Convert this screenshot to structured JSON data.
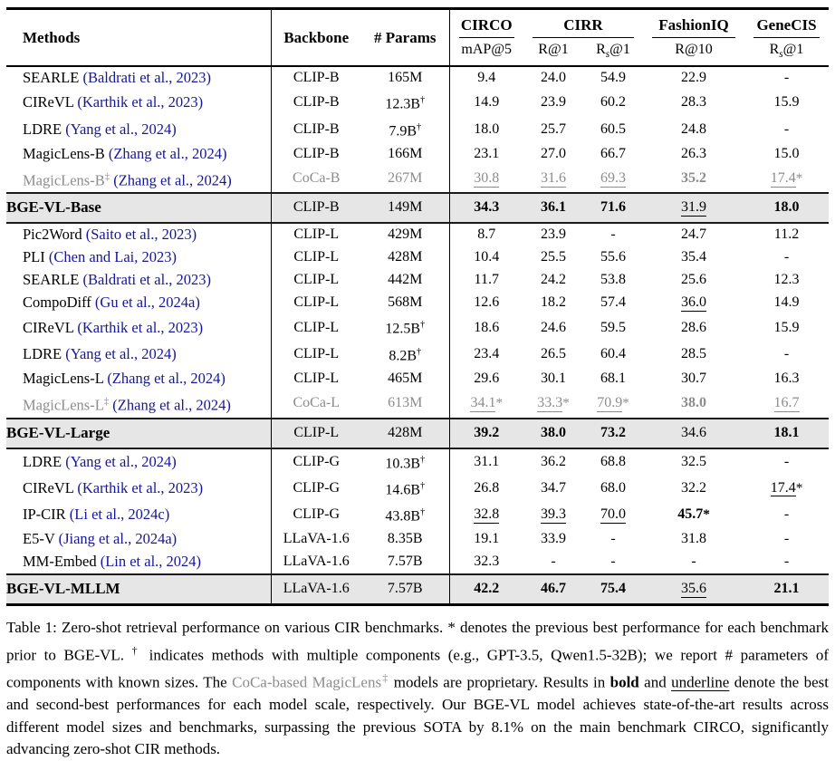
{
  "colors": {
    "cite_blue": "#16169a",
    "gray_text": "#8c8c8c",
    "highlight_bg": "#e6e6e6",
    "rule": "#000000"
  },
  "table": {
    "header": {
      "methods": "Methods",
      "backbone": "Backbone",
      "params": "# Params",
      "groups": [
        {
          "label": "CIRCO"
        },
        {
          "label": "CIRR"
        },
        {
          "label": "FashionIQ"
        },
        {
          "label": "GeneCIS"
        }
      ],
      "sub": [
        {
          "pre": "mAP@5"
        },
        {
          "pre": "R@1"
        },
        {
          "pre": "R",
          "sub": "s",
          "post": "@1"
        },
        {
          "pre": "R@10"
        },
        {
          "pre": "R",
          "sub": "s",
          "post": "@1"
        }
      ]
    },
    "rows": [
      {
        "method": "SEARLE",
        "sup": "",
        "cite": "(Baldrati et al., 2023)",
        "backbone": "CLIP-B",
        "params": "165M",
        "psup": "",
        "gray": false,
        "bge": false,
        "vals": [
          {
            "t": "9.4"
          },
          {
            "t": "24.0"
          },
          {
            "t": "54.9"
          },
          {
            "t": "22.9"
          },
          {
            "t": "-"
          }
        ]
      },
      {
        "method": "CIReVL",
        "sup": "",
        "cite": "(Karthik et al., 2023)",
        "backbone": "CLIP-B",
        "params": "12.3B",
        "psup": "†",
        "gray": false,
        "bge": false,
        "vals": [
          {
            "t": "14.9"
          },
          {
            "t": "23.9"
          },
          {
            "t": "60.2"
          },
          {
            "t": "28.3"
          },
          {
            "t": "15.9"
          }
        ]
      },
      {
        "method": "LDRE",
        "sup": "",
        "cite": "(Yang et al., 2024)",
        "backbone": "CLIP-B",
        "params": "7.9B",
        "psup": "†",
        "gray": false,
        "bge": false,
        "vals": [
          {
            "t": "18.0"
          },
          {
            "t": "25.7"
          },
          {
            "t": "60.5"
          },
          {
            "t": "24.8"
          },
          {
            "t": "-"
          }
        ]
      },
      {
        "method": "MagicLens-B",
        "sup": "",
        "cite": "(Zhang et al., 2024)",
        "backbone": "CLIP-B",
        "params": "166M",
        "psup": "",
        "gray": false,
        "bge": false,
        "vals": [
          {
            "t": "23.1"
          },
          {
            "t": "27.0"
          },
          {
            "t": "66.7"
          },
          {
            "t": "26.3"
          },
          {
            "t": "15.0"
          }
        ]
      },
      {
        "method": "MagicLens-B",
        "sup": "‡",
        "cite": "(Zhang et al., 2024)",
        "backbone": "CoCa-B",
        "params": "267M",
        "psup": "",
        "gray": true,
        "bge": false,
        "vals": [
          {
            "t": "30.8",
            "u": 1
          },
          {
            "t": "31.6",
            "u": 1
          },
          {
            "t": "69.3",
            "u": 1
          },
          {
            "t": "35.2",
            "b": 1
          },
          {
            "t": "17.4",
            "u": 1,
            "s": 1
          }
        ]
      },
      {
        "method": "BGE-VL-Base",
        "sup": "",
        "cite": "",
        "backbone": "CLIP-B",
        "params": "149M",
        "psup": "",
        "gray": false,
        "bge": true,
        "vals": [
          {
            "t": "34.3",
            "b": 1
          },
          {
            "t": "36.1",
            "b": 1
          },
          {
            "t": "71.6",
            "b": 1
          },
          {
            "t": "31.9",
            "u": 1
          },
          {
            "t": "18.0",
            "b": 1
          }
        ]
      },
      {
        "method": "Pic2Word",
        "sup": "",
        "cite": "(Saito et al., 2023)",
        "backbone": "CLIP-L",
        "params": "429M",
        "psup": "",
        "gray": false,
        "bge": false,
        "vals": [
          {
            "t": "8.7"
          },
          {
            "t": "23.9"
          },
          {
            "t": "-"
          },
          {
            "t": "24.7"
          },
          {
            "t": "11.2"
          }
        ]
      },
      {
        "method": "PLI",
        "sup": "",
        "cite": "(Chen and Lai, 2023)",
        "backbone": "CLIP-L",
        "params": "428M",
        "psup": "",
        "gray": false,
        "bge": false,
        "vals": [
          {
            "t": "10.4"
          },
          {
            "t": "25.5"
          },
          {
            "t": "55.6"
          },
          {
            "t": "35.4"
          },
          {
            "t": "-"
          }
        ]
      },
      {
        "method": "SEARLE",
        "sup": "",
        "cite": "(Baldrati et al., 2023)",
        "backbone": "CLIP-L",
        "params": "442M",
        "psup": "",
        "gray": false,
        "bge": false,
        "vals": [
          {
            "t": "11.7"
          },
          {
            "t": "24.2"
          },
          {
            "t": "53.8"
          },
          {
            "t": "25.6"
          },
          {
            "t": "12.3"
          }
        ]
      },
      {
        "method": "CompoDiff",
        "sup": "",
        "cite": "(Gu et al., 2024a)",
        "backbone": "CLIP-L",
        "params": "568M",
        "psup": "",
        "gray": false,
        "bge": false,
        "vals": [
          {
            "t": "12.6"
          },
          {
            "t": "18.2"
          },
          {
            "t": "57.4"
          },
          {
            "t": "36.0",
            "u": 1
          },
          {
            "t": "14.9"
          }
        ]
      },
      {
        "method": "CIReVL",
        "sup": "",
        "cite": "(Karthik et al., 2023)",
        "backbone": "CLIP-L",
        "params": "12.5B",
        "psup": "†",
        "gray": false,
        "bge": false,
        "vals": [
          {
            "t": "18.6"
          },
          {
            "t": "24.6"
          },
          {
            "t": "59.5"
          },
          {
            "t": "28.6"
          },
          {
            "t": "15.9"
          }
        ]
      },
      {
        "method": "LDRE",
        "sup": "",
        "cite": "(Yang et al., 2024)",
        "backbone": "CLIP-L",
        "params": "8.2B",
        "psup": "†",
        "gray": false,
        "bge": false,
        "vals": [
          {
            "t": "23.4"
          },
          {
            "t": "26.5"
          },
          {
            "t": "60.4"
          },
          {
            "t": "28.5"
          },
          {
            "t": "-"
          }
        ]
      },
      {
        "method": "MagicLens-L",
        "sup": "",
        "cite": "(Zhang et al., 2024)",
        "backbone": "CLIP-L",
        "params": "465M",
        "psup": "",
        "gray": false,
        "bge": false,
        "vals": [
          {
            "t": "29.6"
          },
          {
            "t": "30.1"
          },
          {
            "t": "68.1"
          },
          {
            "t": "30.7"
          },
          {
            "t": "16.3"
          }
        ]
      },
      {
        "method": "MagicLens-L",
        "sup": "‡",
        "cite": "(Zhang et al., 2024)",
        "backbone": "CoCa-L",
        "params": "613M",
        "psup": "",
        "gray": true,
        "bge": false,
        "vals": [
          {
            "t": "34.1",
            "u": 1,
            "s": 1
          },
          {
            "t": "33.3",
            "u": 1,
            "s": 1
          },
          {
            "t": "70.9",
            "u": 1,
            "s": 1
          },
          {
            "t": "38.0",
            "b": 1
          },
          {
            "t": "16.7",
            "u": 1
          }
        ]
      },
      {
        "method": "BGE-VL-Large",
        "sup": "",
        "cite": "",
        "backbone": "CLIP-L",
        "params": "428M",
        "psup": "",
        "gray": false,
        "bge": true,
        "vals": [
          {
            "t": "39.2",
            "b": 1
          },
          {
            "t": "38.0",
            "b": 1
          },
          {
            "t": "73.2",
            "b": 1
          },
          {
            "t": "34.6"
          },
          {
            "t": "18.1",
            "b": 1
          }
        ]
      },
      {
        "method": "LDRE",
        "sup": "",
        "cite": "(Yang et al., 2024)",
        "backbone": "CLIP-G",
        "params": "10.3B",
        "psup": "†",
        "gray": false,
        "bge": false,
        "vals": [
          {
            "t": "31.1"
          },
          {
            "t": "36.2"
          },
          {
            "t": "68.8"
          },
          {
            "t": "32.5"
          },
          {
            "t": "-"
          }
        ]
      },
      {
        "method": "CIReVL",
        "sup": "",
        "cite": "(Karthik et al., 2023)",
        "backbone": "CLIP-G",
        "params": "14.6B",
        "psup": "†",
        "gray": false,
        "bge": false,
        "vals": [
          {
            "t": "26.8"
          },
          {
            "t": "34.7"
          },
          {
            "t": "68.0"
          },
          {
            "t": "32.2"
          },
          {
            "t": "17.4",
            "u": 1,
            "s": 1
          }
        ]
      },
      {
        "method": "IP-CIR",
        "sup": "",
        "cite": "(Li et al., 2024c)",
        "backbone": "CLIP-G",
        "params": "43.8B",
        "psup": "†",
        "gray": false,
        "bge": false,
        "vals": [
          {
            "t": "32.8",
            "u": 1
          },
          {
            "t": "39.3",
            "u": 1
          },
          {
            "t": "70.0",
            "u": 1
          },
          {
            "t": "45.7",
            "b": 1,
            "s": 1
          },
          {
            "t": "-"
          }
        ]
      },
      {
        "method": "E5-V",
        "sup": "",
        "cite": "(Jiang et al., 2024a)",
        "backbone": "LLaVA-1.6",
        "params": "8.35B",
        "psup": "",
        "gray": false,
        "bge": false,
        "vals": [
          {
            "t": "19.1"
          },
          {
            "t": "33.9"
          },
          {
            "t": "-"
          },
          {
            "t": "31.8"
          },
          {
            "t": "-"
          }
        ]
      },
      {
        "method": "MM-Embed",
        "sup": "",
        "cite": "(Lin et al., 2024)",
        "backbone": "LLaVA-1.6",
        "params": "7.57B",
        "psup": "",
        "gray": false,
        "bge": false,
        "vals": [
          {
            "t": "32.3"
          },
          {
            "t": "-"
          },
          {
            "t": "-"
          },
          {
            "t": "-"
          },
          {
            "t": "-"
          }
        ]
      },
      {
        "method": "BGE-VL-MLLM",
        "sup": "",
        "cite": "",
        "backbone": "LLaVA-1.6",
        "params": "7.57B",
        "psup": "",
        "gray": false,
        "bge": true,
        "vals": [
          {
            "t": "42.2",
            "b": 1
          },
          {
            "t": "46.7",
            "b": 1
          },
          {
            "t": "75.4",
            "b": 1
          },
          {
            "t": "35.6",
            "u": 1
          },
          {
            "t": "21.1",
            "b": 1
          }
        ]
      }
    ]
  },
  "caption": {
    "segments": [
      {
        "t": "Table 1: Zero-shot retrieval performance on various CIR benchmarks. * denotes the previous best performance for each benchmark prior to BGE-VL. ",
        "s": "n"
      },
      {
        "t": "†",
        "s": "sup"
      },
      {
        "t": " indicates methods with multiple components (e.g., GPT-3.5, Qwen1.5-32B); we report # parameters of components with known sizes. The ",
        "s": "n"
      },
      {
        "t": "CoCa-based MagicLens",
        "s": "g"
      },
      {
        "t": "‡",
        "s": "gsup"
      },
      {
        "t": " models are proprietary. Results in ",
        "s": "n"
      },
      {
        "t": "bold",
        "s": "b"
      },
      {
        "t": " and ",
        "s": "n"
      },
      {
        "t": "underline",
        "s": "u"
      },
      {
        "t": " denote the best and second-best performances for each model scale, respectively. Our BGE-VL model achieves state-of-the-art results across different model sizes and benchmarks, surpassing the previous SOTA by 8.1% on the main benchmark CIRCO, significantly advancing zero-shot CIR methods.",
        "s": "n"
      }
    ]
  }
}
